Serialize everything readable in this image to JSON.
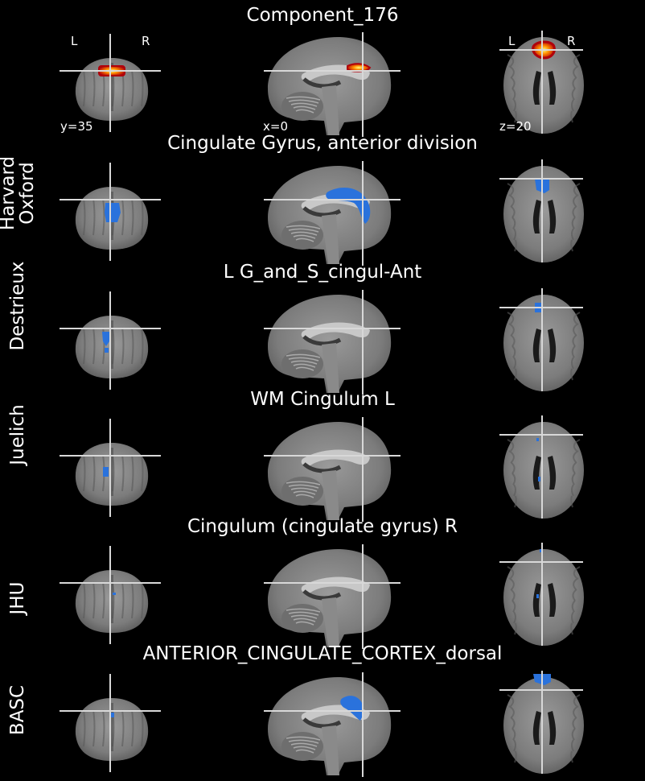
{
  "rows": [
    {
      "title": "Component_176",
      "atlas_label": "",
      "overlay": "component"
    },
    {
      "title": "Cingulate Gyrus, anterior division",
      "atlas_label": "Harvard\nOxford",
      "overlay": "harvard"
    },
    {
      "title": "L G_and_S_cingul-Ant",
      "atlas_label": "Destrieux",
      "overlay": "destrieux"
    },
    {
      "title": "WM Cingulum L",
      "atlas_label": "Juelich",
      "overlay": "juelich"
    },
    {
      "title": "Cingulum (cingulate gyrus) R",
      "atlas_label": "JHU",
      "overlay": "jhu"
    },
    {
      "title": "ANTERIOR_CINGULATE_CORTEX_dorsal",
      "atlas_label": "BASC",
      "overlay": "basc"
    }
  ],
  "orientation": {
    "coronal_left": "L",
    "coronal_right": "R",
    "axial_left": "L",
    "axial_right": "R"
  },
  "coords": {
    "y": "y=35",
    "x": "x=0",
    "z": "z=20"
  },
  "colors": {
    "background": "#000000",
    "crosshair": "#d8d8d8",
    "atlas_overlay": "#2a72dc",
    "component_hot_outer": "#b0000a",
    "component_hot_mid": "#ff8c00",
    "component_hot_inner": "#ffff80"
  }
}
